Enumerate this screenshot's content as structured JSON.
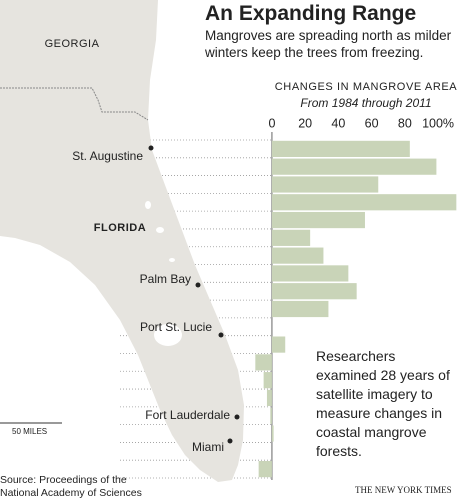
{
  "chart_data": {
    "type": "hbar",
    "title": "An Expanding Range",
    "subtitle": "Mangroves are spreading north as milder winters keep the trees from freezing.",
    "chart_title": "CHANGES IN MANGROVE AREA",
    "chart_subtitle": "From 1984 through 2011",
    "values": [
      83,
      99,
      64,
      111,
      56,
      23,
      31,
      46,
      51,
      34,
      0,
      8,
      -10,
      -5,
      -3,
      -1,
      1,
      0,
      -8
    ],
    "color": "#c9d4b8",
    "xlim": [
      -12,
      112
    ],
    "xticks": [
      0,
      20,
      40,
      60,
      80,
      {
        "value": 100,
        "label": "100%"
      }
    ],
    "map_labels": {
      "state_north": "GEORGIA",
      "state": "FLORIDA",
      "cities": [
        "St. Augustine",
        "Palm Bay",
        "Port St. Lucie",
        "Fort Lauderdale",
        "Miami"
      ],
      "scale": "50 MILES"
    },
    "annotation": "Researchers examined 28 years of satellite imagery to measure changes in coastal mangrove forests.",
    "source": "Source: Proceedings of the National Academy of Sciences",
    "credit": "THE NEW YORK TIMES"
  }
}
